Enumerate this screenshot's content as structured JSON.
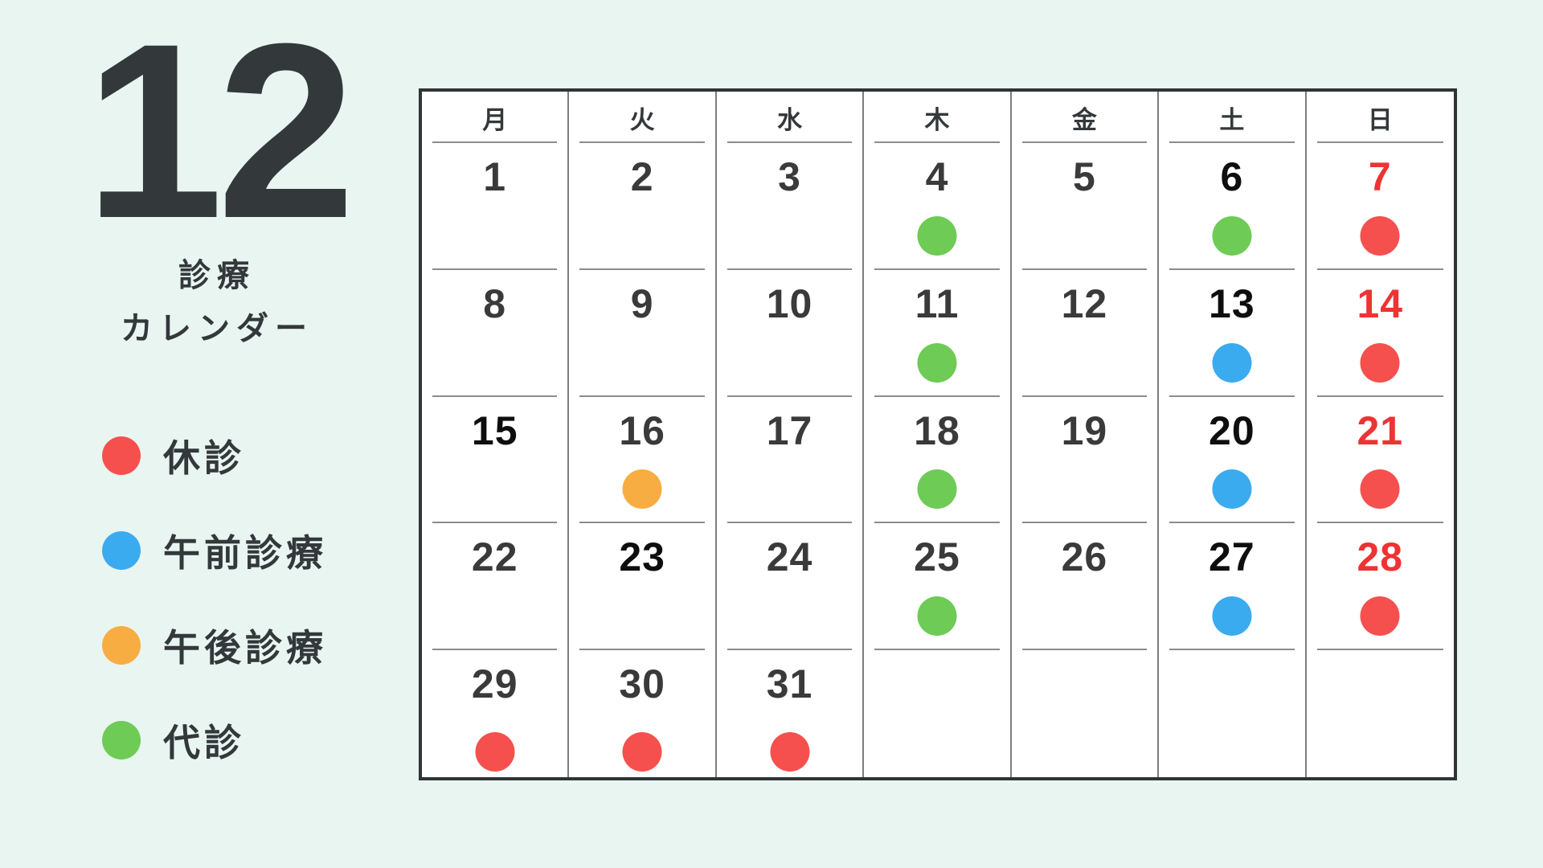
{
  "page": {
    "background": "#e9f5f1",
    "month": "12",
    "subtitle": [
      "診療",
      "カレンダー"
    ]
  },
  "legend": {
    "items": [
      {
        "key": "closed",
        "label": "休診",
        "color": "#f5504e"
      },
      {
        "key": "am",
        "label": "午前診療",
        "color": "#3babf0"
      },
      {
        "key": "pm",
        "label": "午後診療",
        "color": "#f8ad43"
      },
      {
        "key": "substitute",
        "label": "代診",
        "color": "#6ecb55"
      }
    ]
  },
  "calendar": {
    "weekday_headers": [
      "月",
      "火",
      "水",
      "木",
      "金",
      "土",
      "日"
    ],
    "day_text_colors": {
      "weekday": "#3a3a3a",
      "emphasis": "#0e0e0e",
      "sunday": "#ee3333"
    },
    "dot_colors": {
      "closed": "#f5504e",
      "am": "#3babf0",
      "pm": "#f8ad43",
      "substitute": "#6ecb55"
    },
    "weeks": [
      [
        {
          "day": "1",
          "tone": "weekday",
          "dot": null
        },
        {
          "day": "2",
          "tone": "weekday",
          "dot": null
        },
        {
          "day": "3",
          "tone": "weekday",
          "dot": null
        },
        {
          "day": "4",
          "tone": "weekday",
          "dot": "substitute"
        },
        {
          "day": "5",
          "tone": "weekday",
          "dot": null
        },
        {
          "day": "6",
          "tone": "emphasis",
          "dot": "substitute"
        },
        {
          "day": "7",
          "tone": "sunday",
          "dot": "closed"
        }
      ],
      [
        {
          "day": "8",
          "tone": "weekday",
          "dot": null
        },
        {
          "day": "9",
          "tone": "weekday",
          "dot": null
        },
        {
          "day": "10",
          "tone": "weekday",
          "dot": null
        },
        {
          "day": "11",
          "tone": "weekday",
          "dot": "substitute"
        },
        {
          "day": "12",
          "tone": "weekday",
          "dot": null
        },
        {
          "day": "13",
          "tone": "emphasis",
          "dot": "am"
        },
        {
          "day": "14",
          "tone": "sunday",
          "dot": "closed"
        }
      ],
      [
        {
          "day": "15",
          "tone": "emphasis",
          "dot": null
        },
        {
          "day": "16",
          "tone": "weekday",
          "dot": "pm"
        },
        {
          "day": "17",
          "tone": "weekday",
          "dot": null
        },
        {
          "day": "18",
          "tone": "weekday",
          "dot": "substitute"
        },
        {
          "day": "19",
          "tone": "weekday",
          "dot": null
        },
        {
          "day": "20",
          "tone": "emphasis",
          "dot": "am"
        },
        {
          "day": "21",
          "tone": "sunday",
          "dot": "closed"
        }
      ],
      [
        {
          "day": "22",
          "tone": "weekday",
          "dot": null
        },
        {
          "day": "23",
          "tone": "emphasis",
          "dot": null
        },
        {
          "day": "24",
          "tone": "weekday",
          "dot": null
        },
        {
          "day": "25",
          "tone": "weekday",
          "dot": "substitute"
        },
        {
          "day": "26",
          "tone": "weekday",
          "dot": null
        },
        {
          "day": "27",
          "tone": "emphasis",
          "dot": "am"
        },
        {
          "day": "28",
          "tone": "sunday",
          "dot": "closed"
        }
      ],
      [
        {
          "day": "29",
          "tone": "weekday",
          "dot": "closed"
        },
        {
          "day": "30",
          "tone": "weekday",
          "dot": "closed"
        },
        {
          "day": "31",
          "tone": "weekday",
          "dot": "closed"
        },
        {
          "day": "",
          "tone": "weekday",
          "dot": null
        },
        {
          "day": "",
          "tone": "weekday",
          "dot": null
        },
        {
          "day": "",
          "tone": "weekday",
          "dot": null
        },
        {
          "day": "",
          "tone": "weekday",
          "dot": null
        }
      ]
    ]
  }
}
